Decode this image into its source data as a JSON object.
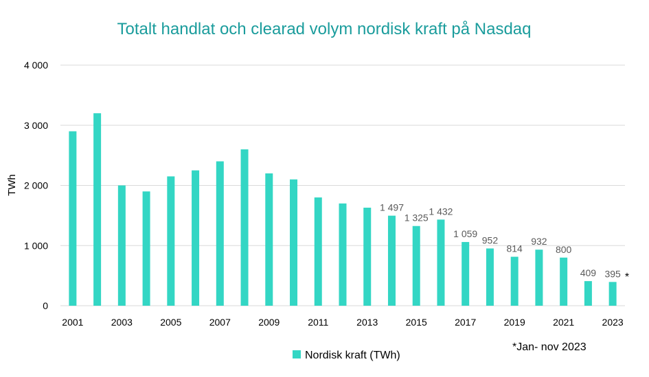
{
  "chart_data": {
    "type": "bar",
    "title": "Totalt handlat och clearad volym nordisk kraft på Nasdaq",
    "ylabel": "TWh",
    "xlabel": "",
    "ylim": [
      0,
      4000
    ],
    "y_ticks": [
      "0",
      "1 000",
      "2 000",
      "3 000",
      "4 000"
    ],
    "y_tick_values": [
      0,
      1000,
      2000,
      3000,
      4000
    ],
    "grid": true,
    "legend_position": "bottom",
    "categories": [
      "2001",
      "2002",
      "2003",
      "2004",
      "2005",
      "2006",
      "2007",
      "2008",
      "2009",
      "2010",
      "2011",
      "2012",
      "2013",
      "2014",
      "2015",
      "2016",
      "2017",
      "2018",
      "2019",
      "2020",
      "2021",
      "2022",
      "2023"
    ],
    "x_tick_labels": [
      "2001",
      "",
      "2003",
      "",
      "2005",
      "",
      "2007",
      "",
      "2009",
      "",
      "2011",
      "",
      "2013",
      "",
      "2015",
      "",
      "2017",
      "",
      "2019",
      "",
      "2021",
      "",
      "2023"
    ],
    "series": [
      {
        "name": "Nordisk kraft (TWh)",
        "color": "#33d6c4",
        "values": [
          2900,
          3200,
          2000,
          1900,
          2150,
          2250,
          2400,
          2600,
          2200,
          2100,
          1800,
          1700,
          1630,
          1497,
          1325,
          1432,
          1059,
          952,
          814,
          932,
          800,
          409,
          395
        ],
        "data_labels": [
          "",
          "",
          "",
          "",
          "",
          "",
          "",
          "",
          "",
          "",
          "",
          "",
          "",
          "1 497",
          "1 325",
          "1 432",
          "1 059",
          "952",
          "814",
          "932",
          "800",
          "409",
          "395"
        ]
      }
    ],
    "annotations": [
      "*",
      "*Jan- nov 2023"
    ]
  },
  "colors": {
    "title": "#1a9c9c",
    "grid": "#d9d9d9",
    "bar": "#33d6c4",
    "label": "#595959"
  }
}
